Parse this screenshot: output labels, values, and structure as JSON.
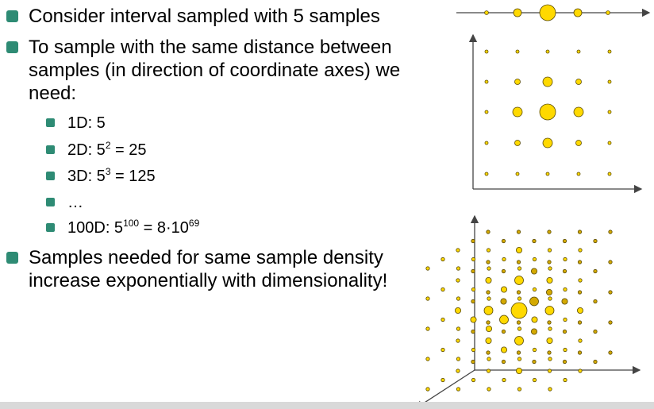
{
  "bullets": [
    {
      "text": "Consider interval sampled with 5 samples"
    },
    {
      "lines": [
        "To sample with the same distance between",
        "samples (in direction of coordinate axes) we",
        "need:"
      ]
    },
    {
      "lines": [
        "Samples needed for same sample density",
        "increase exponentially with dimensionality!"
      ]
    }
  ],
  "sub_bullets": [
    {
      "main": "1D: 5"
    },
    {
      "main": "2D: 5",
      "sup": "2",
      "rest": " = 25"
    },
    {
      "main": "3D: 5",
      "sup": "3",
      "rest": " = 125"
    },
    {
      "main": "…"
    },
    {
      "main": "100D: 5",
      "sup": "100",
      "rest": " = 8·10",
      "sup2": "69"
    }
  ],
  "colors": {
    "bullet": "#2e8b74",
    "dot": "#ffd900",
    "dot_dark": "#d4a900",
    "axis": "#444444"
  }
}
